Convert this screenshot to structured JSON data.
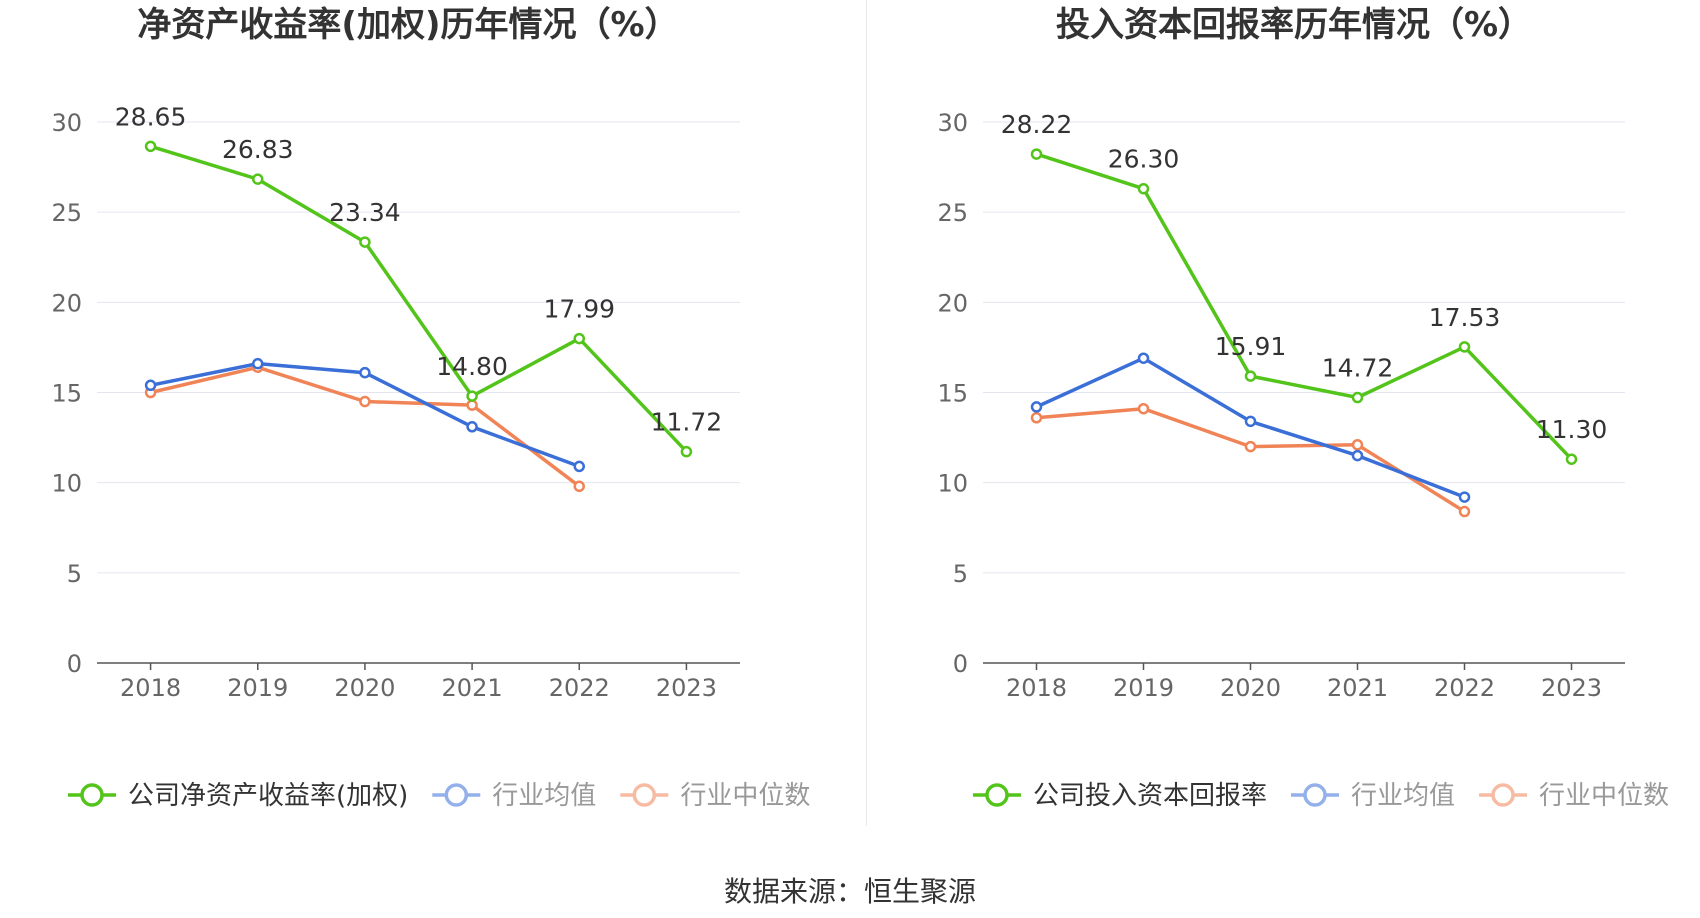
{
  "source": "数据来源：恒生聚源",
  "chart_data": [
    {
      "type": "line",
      "title": "净资产收益率(加权)历年情况（%）",
      "categories": [
        "2018",
        "2019",
        "2020",
        "2021",
        "2022",
        "2023"
      ],
      "ylim": [
        0,
        30
      ],
      "yticks": [
        0,
        5,
        10,
        15,
        20,
        25,
        30
      ],
      "grid": true,
      "legend_position": "bottom",
      "series": [
        {
          "name": "公司净资产收益率(加权)",
          "color": "#52c41a",
          "labeled": true,
          "values": [
            28.65,
            26.83,
            23.34,
            14.8,
            17.99,
            11.72
          ],
          "labels": [
            "28.65",
            "26.83",
            "23.34",
            "14.80",
            "17.99",
            "11.72"
          ]
        },
        {
          "name": "行业均值",
          "color": "#3b6fd8",
          "labeled": false,
          "values": [
            15.4,
            16.6,
            16.1,
            13.1,
            10.9,
            null
          ]
        },
        {
          "name": "行业中位数",
          "color": "#f08457",
          "labeled": false,
          "values": [
            15.0,
            16.4,
            14.5,
            14.3,
            9.8,
            null
          ]
        }
      ]
    },
    {
      "type": "line",
      "title": "投入资本回报率历年情况（%）",
      "categories": [
        "2018",
        "2019",
        "2020",
        "2021",
        "2022",
        "2023"
      ],
      "ylim": [
        0,
        30
      ],
      "yticks": [
        0,
        5,
        10,
        15,
        20,
        25,
        30
      ],
      "grid": true,
      "legend_position": "bottom",
      "series": [
        {
          "name": "公司投入资本回报率",
          "color": "#52c41a",
          "labeled": true,
          "values": [
            28.22,
            26.3,
            15.91,
            14.72,
            17.53,
            11.3
          ],
          "labels": [
            "28.22",
            "26.30",
            "15.91",
            "14.72",
            "17.53",
            "11.30"
          ]
        },
        {
          "name": "行业均值",
          "color": "#3b6fd8",
          "labeled": false,
          "values": [
            14.2,
            16.9,
            13.4,
            11.5,
            9.2,
            null
          ]
        },
        {
          "name": "行业中位数",
          "color": "#f08457",
          "labeled": false,
          "values": [
            13.6,
            14.1,
            12.0,
            12.1,
            8.4,
            null
          ]
        }
      ]
    }
  ]
}
